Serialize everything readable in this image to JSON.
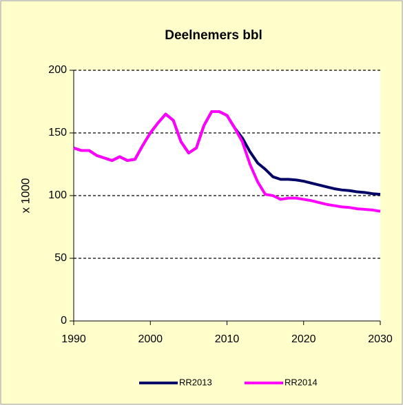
{
  "chart_data": {
    "type": "line",
    "title": "Deelnemers bbl",
    "y_label": "x 1000",
    "x": [
      1990,
      1991,
      1992,
      1993,
      1994,
      1995,
      1996,
      1997,
      1998,
      1999,
      2000,
      2001,
      2002,
      2003,
      2004,
      2005,
      2006,
      2007,
      2008,
      2009,
      2010,
      2011,
      2012,
      2013,
      2014,
      2015,
      2016,
      2017,
      2018,
      2019,
      2020,
      2021,
      2022,
      2023,
      2024,
      2025,
      2026,
      2027,
      2028,
      2029,
      2030
    ],
    "series": [
      {
        "name": "RR2013",
        "color": "#000066",
        "values": [
          138,
          136,
          136,
          132,
          130,
          128,
          131,
          128,
          129,
          140,
          150,
          158,
          165,
          160,
          143,
          134,
          138,
          156,
          167,
          167,
          164,
          154,
          146,
          135,
          126,
          121,
          115,
          113,
          113,
          112.5,
          111.5,
          110,
          108.5,
          107,
          105.5,
          104.5,
          104,
          103,
          102.5,
          101.5,
          101
        ]
      },
      {
        "name": "RR2014",
        "color": "#ff00ff",
        "values": [
          138,
          136,
          136,
          132,
          130,
          128,
          131,
          128,
          129,
          140,
          150,
          158,
          165,
          160,
          143,
          134,
          138,
          156,
          167,
          167,
          164,
          154,
          143,
          125,
          111,
          101,
          100,
          97,
          98,
          98,
          97,
          96,
          94.5,
          93,
          92,
          91,
          90.5,
          89.5,
          89,
          88.5,
          87.5
        ]
      }
    ],
    "xlim": [
      1990,
      2030
    ],
    "xticks": [
      1990,
      2000,
      2010,
      2020,
      2030
    ],
    "ylim": [
      0,
      200
    ],
    "yticks": [
      0,
      50,
      100,
      150,
      200
    ],
    "grid": true,
    "legend": "bottom"
  }
}
